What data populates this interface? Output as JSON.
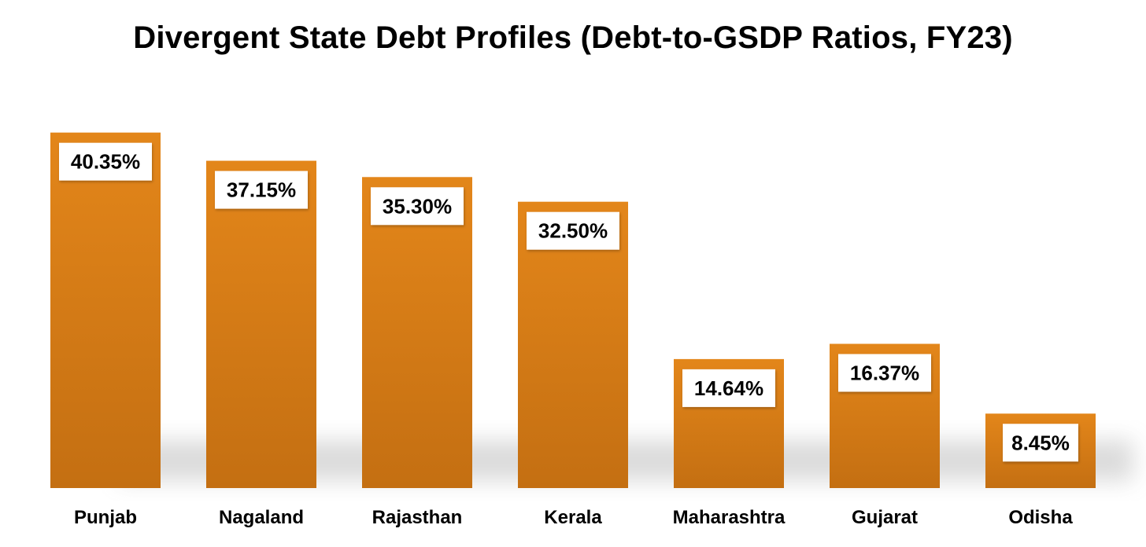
{
  "chart_data": {
    "type": "bar",
    "title": "Divergent State Debt Profiles (Debt-to-GSDP Ratios, FY23)",
    "xlabel": "",
    "ylabel": "",
    "ylim": [
      0,
      45
    ],
    "grid": false,
    "legend": "none",
    "categories": [
      "Punjab",
      "Nagaland",
      "Rajasthan",
      "Kerala",
      "Maharashtra",
      "Gujarat",
      "Odisha"
    ],
    "values": [
      40.35,
      37.15,
      35.3,
      32.5,
      14.64,
      16.37,
      8.45
    ],
    "value_labels": [
      "40.35%",
      "37.15%",
      "35.30%",
      "32.50%",
      "14.64%",
      "16.37%",
      "8.45%"
    ],
    "colors": {
      "bar_top": "#e3861a",
      "bar_bottom": "#c46f12",
      "label_box": "#ffffff",
      "shadow": "#9a9a9a"
    }
  }
}
